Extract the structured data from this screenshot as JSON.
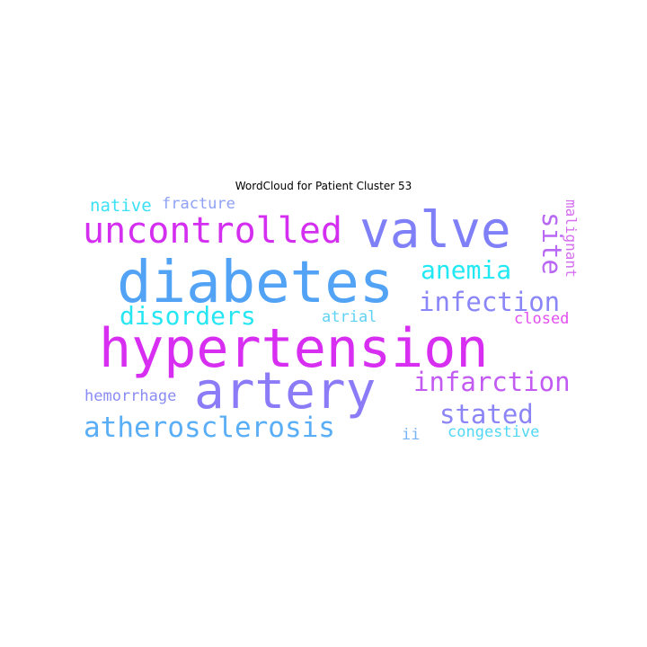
{
  "title": "WordCloud for Patient Cluster 53",
  "words": [
    {
      "text": "hypertension",
      "color": "#d72ef2"
    },
    {
      "text": "diabetes",
      "color": "#52a3f5"
    },
    {
      "text": "valve",
      "color": "#7f7ff8"
    },
    {
      "text": "artery",
      "color": "#8b7bf7"
    },
    {
      "text": "uncontrolled",
      "color": "#d42ff0"
    },
    {
      "text": "atherosclerosis",
      "color": "#5aaef6"
    },
    {
      "text": "disorders",
      "color": "#25e6f2"
    },
    {
      "text": "infection",
      "color": "#8a86f7"
    },
    {
      "text": "infarction",
      "color": "#c15bf2"
    },
    {
      "text": "anemia",
      "color": "#21e9f3"
    },
    {
      "text": "site",
      "color": "#b868f4"
    },
    {
      "text": "stated",
      "color": "#8b85f5"
    },
    {
      "text": "hemorrhage",
      "color": "#8a8cf5"
    },
    {
      "text": "native",
      "color": "#3ae1f5"
    },
    {
      "text": "fracture",
      "color": "#8ea1f5"
    },
    {
      "text": "malignant",
      "color": "#d66ef2"
    },
    {
      "text": "atrial",
      "color": "#5fd1f5"
    },
    {
      "text": "closed",
      "color": "#e24ef0"
    },
    {
      "text": "congestive",
      "color": "#52d7f5"
    },
    {
      "text": "ii",
      "color": "#78b3f5"
    }
  ]
}
